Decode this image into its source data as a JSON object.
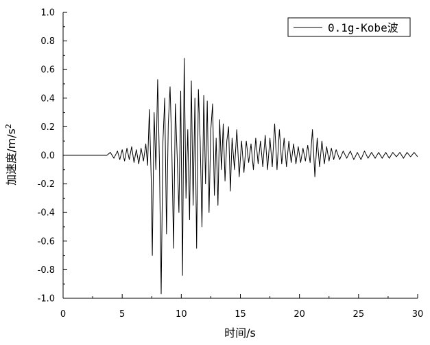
{
  "chart_data": {
    "type": "line",
    "xlabel": "时间/s",
    "ylabel": "加速度/m/s",
    "ylabel_sup": "2",
    "xlim": [
      0,
      30
    ],
    "ylim": [
      -1.0,
      1.0
    ],
    "x_ticks": [
      0,
      5,
      10,
      15,
      20,
      25,
      30
    ],
    "x_tick_labels": [
      "0",
      "5",
      "10",
      "15",
      "20",
      "25",
      "30"
    ],
    "y_ticks": [
      1.0,
      0.8,
      0.6,
      0.4,
      0.2,
      0.0,
      -0.2,
      -0.4,
      -0.6,
      -0.8,
      -1.0
    ],
    "y_tick_labels": [
      "1.0",
      "0.8",
      "0.6",
      "0.4",
      "0.2",
      "0.0",
      "-0.2",
      "-0.4",
      "-0.6",
      "-0.8",
      "-1.0"
    ],
    "grid": false,
    "legend_position": "top-right",
    "series": [
      {
        "name": "0.1g-Kobe波",
        "color": "#000000",
        "x": [
          0,
          3.7,
          4.0,
          4.3,
          4.6,
          4.8,
          5.0,
          5.2,
          5.4,
          5.6,
          5.8,
          6.0,
          6.2,
          6.4,
          6.6,
          6.8,
          7.0,
          7.15,
          7.3,
          7.45,
          7.55,
          7.7,
          7.85,
          8.0,
          8.15,
          8.3,
          8.45,
          8.6,
          8.75,
          8.9,
          9.05,
          9.2,
          9.35,
          9.5,
          9.65,
          9.8,
          9.95,
          10.1,
          10.25,
          10.4,
          10.55,
          10.7,
          10.85,
          11.0,
          11.15,
          11.3,
          11.45,
          11.6,
          11.75,
          11.9,
          12.05,
          12.2,
          12.35,
          12.5,
          12.65,
          12.8,
          12.95,
          13.1,
          13.25,
          13.4,
          13.55,
          13.7,
          13.85,
          14.0,
          14.15,
          14.3,
          14.5,
          14.7,
          14.9,
          15.1,
          15.3,
          15.5,
          15.7,
          15.9,
          16.1,
          16.3,
          16.5,
          16.7,
          16.9,
          17.1,
          17.3,
          17.5,
          17.7,
          17.9,
          18.1,
          18.3,
          18.5,
          18.7,
          18.9,
          19.1,
          19.3,
          19.5,
          19.7,
          19.9,
          20.1,
          20.3,
          20.5,
          20.7,
          20.9,
          21.1,
          21.3,
          21.5,
          21.7,
          21.9,
          22.1,
          22.3,
          22.5,
          22.7,
          22.9,
          23.1,
          23.4,
          23.7,
          24.0,
          24.3,
          24.6,
          24.9,
          25.2,
          25.5,
          25.8,
          26.1,
          26.4,
          26.7,
          27.0,
          27.3,
          27.6,
          27.9,
          28.2,
          28.5,
          28.8,
          29.1,
          29.4,
          29.7,
          30.0
        ],
        "y": [
          0.0,
          0.0,
          0.02,
          -0.02,
          0.03,
          -0.03,
          0.04,
          -0.04,
          0.05,
          -0.03,
          0.06,
          -0.05,
          0.04,
          -0.06,
          0.05,
          -0.04,
          0.08,
          -0.07,
          0.32,
          -0.15,
          -0.7,
          0.3,
          -0.1,
          0.53,
          -0.05,
          -0.97,
          0.1,
          0.4,
          -0.55,
          0.22,
          0.48,
          0.05,
          -0.65,
          0.36,
          0.0,
          -0.4,
          0.45,
          -0.84,
          0.68,
          -0.3,
          0.18,
          -0.45,
          0.52,
          -0.35,
          0.4,
          -0.65,
          0.46,
          0.1,
          -0.5,
          0.42,
          -0.2,
          0.38,
          -0.4,
          0.18,
          0.36,
          -0.28,
          0.12,
          -0.35,
          0.25,
          -0.1,
          0.22,
          -0.18,
          0.1,
          0.2,
          -0.25,
          0.12,
          -0.1,
          0.18,
          -0.15,
          0.1,
          -0.12,
          0.1,
          -0.05,
          0.08,
          -0.1,
          0.12,
          -0.06,
          0.1,
          -0.08,
          0.14,
          -0.1,
          0.12,
          -0.08,
          0.22,
          -0.1,
          0.18,
          -0.06,
          0.12,
          -0.08,
          0.1,
          -0.05,
          0.08,
          -0.06,
          0.06,
          -0.05,
          0.05,
          -0.04,
          0.07,
          -0.05,
          0.18,
          -0.15,
          0.12,
          -0.08,
          0.1,
          -0.06,
          0.06,
          -0.04,
          0.05,
          -0.03,
          0.04,
          -0.03,
          0.03,
          -0.02,
          0.03,
          -0.03,
          0.02,
          -0.03,
          0.03,
          -0.02,
          0.02,
          -0.02,
          0.02,
          -0.02,
          0.02,
          -0.02,
          0.02,
          -0.01,
          0.02,
          -0.02,
          0.02,
          -0.01,
          0.02,
          -0.01
        ]
      }
    ]
  }
}
